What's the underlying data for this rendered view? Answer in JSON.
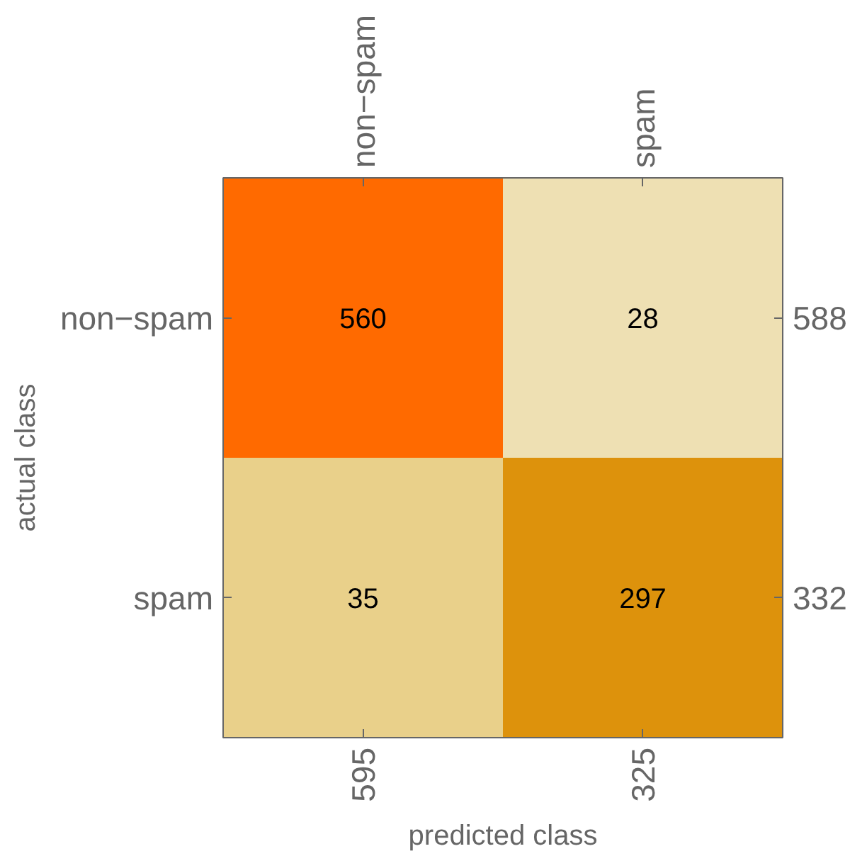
{
  "chart_data": {
    "type": "heatmap",
    "categories": [
      "non−spam",
      "spam"
    ],
    "y_categories": [
      "non−spam",
      "spam"
    ],
    "y2_categories": [
      "588",
      "332"
    ],
    "cells": [
      [
        560,
        28
      ],
      [
        35,
        297
      ]
    ],
    "colors": [
      [
        "#ff6a00",
        "#eee0b3"
      ],
      [
        "#e9d08a",
        "#dd920c"
      ]
    ],
    "data_labels": true,
    "xlabel": "predicted class",
    "ylabel": "actual class",
    "annotations": [
      "595",
      "325"
    ]
  }
}
